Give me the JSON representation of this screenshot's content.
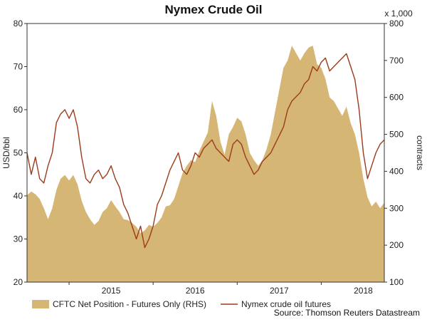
{
  "chart_data": {
    "type": "area+line",
    "title": "Nymex Crude Oil",
    "y_left": {
      "label": "USD/bbl",
      "range": [
        20,
        80
      ],
      "ticks": [
        "20",
        "30",
        "40",
        "50",
        "60",
        "70",
        "80"
      ]
    },
    "y_right": {
      "label": "contracts",
      "scale_note": "x 1,000",
      "range": [
        100,
        800
      ],
      "ticks": [
        "100",
        "200",
        "300",
        "400",
        "500",
        "600",
        "700",
        "800"
      ]
    },
    "x": {
      "range": [
        2014.5,
        2018.75
      ],
      "ticks": [
        "2015",
        "2016",
        "2017",
        "2018"
      ],
      "tick_positions": [
        2015,
        2016,
        2017,
        2018
      ]
    },
    "series": [
      {
        "name": "CFTC Net Position - Futures Only (RHS)",
        "kind": "area",
        "axis": "right",
        "color": "#d6b674",
        "points": [
          [
            2014.5,
            335
          ],
          [
            2014.55,
            345
          ],
          [
            2014.6,
            338
          ],
          [
            2014.65,
            325
          ],
          [
            2014.7,
            300
          ],
          [
            2014.75,
            270
          ],
          [
            2014.8,
            300
          ],
          [
            2014.85,
            350
          ],
          [
            2014.9,
            380
          ],
          [
            2014.95,
            390
          ],
          [
            2015.0,
            375
          ],
          [
            2015.05,
            390
          ],
          [
            2015.1,
            365
          ],
          [
            2015.15,
            320
          ],
          [
            2015.2,
            290
          ],
          [
            2015.25,
            270
          ],
          [
            2015.3,
            255
          ],
          [
            2015.35,
            265
          ],
          [
            2015.4,
            290
          ],
          [
            2015.45,
            300
          ],
          [
            2015.5,
            322
          ],
          [
            2015.55,
            305
          ],
          [
            2015.6,
            290
          ],
          [
            2015.65,
            270
          ],
          [
            2015.7,
            268
          ],
          [
            2015.75,
            260
          ],
          [
            2015.8,
            250
          ],
          [
            2015.85,
            232
          ],
          [
            2015.9,
            240
          ],
          [
            2015.95,
            255
          ],
          [
            2016.0,
            250
          ],
          [
            2016.05,
            260
          ],
          [
            2016.1,
            275
          ],
          [
            2016.15,
            305
          ],
          [
            2016.2,
            308
          ],
          [
            2016.25,
            325
          ],
          [
            2016.3,
            360
          ],
          [
            2016.35,
            395
          ],
          [
            2016.4,
            415
          ],
          [
            2016.45,
            430
          ],
          [
            2016.5,
            425
          ],
          [
            2016.55,
            455
          ],
          [
            2016.6,
            480
          ],
          [
            2016.65,
            505
          ],
          [
            2016.7,
            590
          ],
          [
            2016.75,
            550
          ],
          [
            2016.8,
            480
          ],
          [
            2016.85,
            445
          ],
          [
            2016.9,
            500
          ],
          [
            2016.95,
            520
          ],
          [
            2017.0,
            545
          ],
          [
            2017.05,
            535
          ],
          [
            2017.1,
            500
          ],
          [
            2017.15,
            450
          ],
          [
            2017.2,
            430
          ],
          [
            2017.25,
            415
          ],
          [
            2017.3,
            430
          ],
          [
            2017.35,
            460
          ],
          [
            2017.4,
            500
          ],
          [
            2017.45,
            560
          ],
          [
            2017.5,
            620
          ],
          [
            2017.55,
            680
          ],
          [
            2017.6,
            700
          ],
          [
            2017.65,
            740
          ],
          [
            2017.7,
            720
          ],
          [
            2017.75,
            700
          ],
          [
            2017.8,
            720
          ],
          [
            2017.85,
            735
          ],
          [
            2017.9,
            740
          ],
          [
            2017.95,
            690
          ],
          [
            2018.0,
            680
          ],
          [
            2018.05,
            650
          ],
          [
            2018.1,
            600
          ],
          [
            2018.15,
            590
          ],
          [
            2018.2,
            570
          ],
          [
            2018.25,
            550
          ],
          [
            2018.3,
            575
          ],
          [
            2018.35,
            530
          ],
          [
            2018.4,
            500
          ],
          [
            2018.45,
            450
          ],
          [
            2018.5,
            380
          ],
          [
            2018.55,
            330
          ],
          [
            2018.6,
            305
          ],
          [
            2018.65,
            318
          ],
          [
            2018.7,
            300
          ],
          [
            2018.75,
            315
          ]
        ]
      },
      {
        "name": "Nymex crude oil futures",
        "kind": "line",
        "axis": "left",
        "color": "#9b3b1a",
        "points": [
          [
            2014.5,
            50
          ],
          [
            2014.55,
            45
          ],
          [
            2014.6,
            49
          ],
          [
            2014.65,
            44
          ],
          [
            2014.7,
            43
          ],
          [
            2014.75,
            47
          ],
          [
            2014.8,
            50
          ],
          [
            2014.85,
            57
          ],
          [
            2014.9,
            59
          ],
          [
            2014.95,
            60
          ],
          [
            2015.0,
            58
          ],
          [
            2015.05,
            60
          ],
          [
            2015.1,
            56
          ],
          [
            2015.15,
            49
          ],
          [
            2015.2,
            44
          ],
          [
            2015.25,
            43
          ],
          [
            2015.3,
            45
          ],
          [
            2015.35,
            46
          ],
          [
            2015.4,
            44
          ],
          [
            2015.45,
            45
          ],
          [
            2015.5,
            47
          ],
          [
            2015.55,
            44
          ],
          [
            2015.6,
            42
          ],
          [
            2015.65,
            38
          ],
          [
            2015.7,
            36
          ],
          [
            2015.75,
            33
          ],
          [
            2015.8,
            30
          ],
          [
            2015.85,
            33
          ],
          [
            2015.9,
            28
          ],
          [
            2015.95,
            30
          ],
          [
            2016.0,
            33
          ],
          [
            2016.05,
            38
          ],
          [
            2016.1,
            40
          ],
          [
            2016.15,
            43
          ],
          [
            2016.2,
            46
          ],
          [
            2016.25,
            48
          ],
          [
            2016.3,
            50
          ],
          [
            2016.35,
            46
          ],
          [
            2016.4,
            45
          ],
          [
            2016.45,
            47
          ],
          [
            2016.5,
            50
          ],
          [
            2016.55,
            49
          ],
          [
            2016.6,
            51
          ],
          [
            2016.65,
            52
          ],
          [
            2016.7,
            53
          ],
          [
            2016.75,
            51
          ],
          [
            2016.8,
            50
          ],
          [
            2016.85,
            49
          ],
          [
            2016.9,
            48
          ],
          [
            2016.95,
            52
          ],
          [
            2017.0,
            53
          ],
          [
            2017.05,
            52
          ],
          [
            2017.1,
            49
          ],
          [
            2017.15,
            47
          ],
          [
            2017.2,
            45
          ],
          [
            2017.25,
            46
          ],
          [
            2017.3,
            48
          ],
          [
            2017.35,
            49
          ],
          [
            2017.4,
            50
          ],
          [
            2017.45,
            52
          ],
          [
            2017.5,
            54
          ],
          [
            2017.55,
            56
          ],
          [
            2017.6,
            60
          ],
          [
            2017.65,
            62
          ],
          [
            2017.7,
            63
          ],
          [
            2017.75,
            64
          ],
          [
            2017.8,
            66
          ],
          [
            2017.85,
            67
          ],
          [
            2017.9,
            70
          ],
          [
            2017.95,
            69
          ],
          [
            2018.0,
            71
          ],
          [
            2018.05,
            72
          ],
          [
            2018.1,
            69
          ],
          [
            2018.15,
            70
          ],
          [
            2018.2,
            71
          ],
          [
            2018.25,
            72
          ],
          [
            2018.3,
            73
          ],
          [
            2018.35,
            70
          ],
          [
            2018.4,
            67
          ],
          [
            2018.45,
            60
          ],
          [
            2018.5,
            50
          ],
          [
            2018.55,
            44
          ],
          [
            2018.6,
            47
          ],
          [
            2018.65,
            50
          ],
          [
            2018.7,
            52
          ],
          [
            2018.75,
            53
          ]
        ]
      }
    ],
    "legend_position": "bottom",
    "grid": false
  },
  "source": "Source: Thomson Reuters Datastream"
}
